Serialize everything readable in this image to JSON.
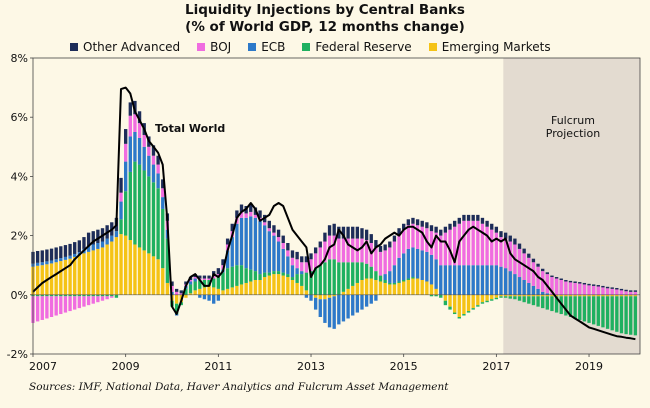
{
  "title_line1": "Liquidity Injections by Central Banks",
  "title_line2": "(% of World GDP, 12 months change)",
  "source": "Sources: IMF, National Data, Haver Analytics and Fulcrum Asset Management",
  "colors": {
    "background": "#fdf8e6",
    "projection_band": "#e3dbd0",
    "Other Advanced": "#1d2c58",
    "BOJ": "#f06ce0",
    "ECB": "#2d79c9",
    "Federal Reserve": "#1fb060",
    "Emerging Markets": "#f5c316",
    "total_line": "#000000"
  },
  "chart_data": {
    "type": "bar",
    "stacked": true,
    "title": "Liquidity Injections by Central Banks",
    "subtitle": "(% of World GDP, 12 months change)",
    "ylabel": "",
    "ylim": [
      -2,
      8
    ],
    "y_ticks": [
      "-2%",
      "0%",
      "2%",
      "4%",
      "6%",
      "8%"
    ],
    "x_ticks": [
      "2007",
      "2009",
      "2011",
      "2013",
      "2015",
      "2017",
      "2019"
    ],
    "xlim": [
      2007.0,
      2020.1
    ],
    "legend_position": "top",
    "grid": false,
    "projection": {
      "start": 2017.15,
      "end": 2020.1,
      "label_line1": "Fulcrum",
      "label_line2": "Projection"
    },
    "series_names": [
      "Other Advanced",
      "BOJ",
      "ECB",
      "Federal Reserve",
      "Emerging Markets"
    ],
    "line_label": "Total World",
    "x": [
      2007.0,
      2007.1,
      2007.2,
      2007.3,
      2007.4,
      2007.5,
      2007.6,
      2007.7,
      2007.8,
      2007.9,
      2008.0,
      2008.1,
      2008.2,
      2008.3,
      2008.4,
      2008.5,
      2008.6,
      2008.7,
      2008.8,
      2008.9,
      2009.0,
      2009.1,
      2009.2,
      2009.3,
      2009.4,
      2009.5,
      2009.6,
      2009.7,
      2009.8,
      2009.9,
      2010.0,
      2010.1,
      2010.2,
      2010.3,
      2010.4,
      2010.5,
      2010.6,
      2010.7,
      2010.8,
      2010.9,
      2011.0,
      2011.1,
      2011.2,
      2011.3,
      2011.4,
      2011.5,
      2011.6,
      2011.7,
      2011.8,
      2011.9,
      2012.0,
      2012.1,
      2012.2,
      2012.3,
      2012.4,
      2012.5,
      2012.6,
      2012.7,
      2012.8,
      2012.9,
      2013.0,
      2013.1,
      2013.2,
      2013.3,
      2013.4,
      2013.5,
      2013.6,
      2013.7,
      2013.8,
      2013.9,
      2014.0,
      2014.1,
      2014.2,
      2014.3,
      2014.4,
      2014.5,
      2014.6,
      2014.7,
      2014.8,
      2014.9,
      2015.0,
      2015.1,
      2015.2,
      2015.3,
      2015.4,
      2015.5,
      2015.6,
      2015.7,
      2015.8,
      2015.9,
      2016.0,
      2016.1,
      2016.2,
      2016.3,
      2016.4,
      2016.5,
      2016.6,
      2016.7,
      2016.8,
      2016.9,
      2017.0,
      2017.1,
      2017.2,
      2017.3,
      2017.4,
      2017.5,
      2017.6,
      2017.7,
      2017.8,
      2017.9,
      2018.0,
      2018.1,
      2018.2,
      2018.3,
      2018.4,
      2018.5,
      2018.6,
      2018.7,
      2018.8,
      2018.9,
      2019.0,
      2019.1,
      2019.2,
      2019.3,
      2019.4,
      2019.5,
      2019.6,
      2019.7,
      2019.8,
      2019.9,
      2020.0
    ],
    "series": [
      {
        "name": "Emerging Markets",
        "values": [
          0.95,
          0.98,
          1.0,
          1.03,
          1.06,
          1.1,
          1.14,
          1.18,
          1.22,
          1.28,
          1.34,
          1.4,
          1.45,
          1.5,
          1.55,
          1.6,
          1.7,
          1.8,
          1.95,
          2.05,
          2.0,
          1.85,
          1.7,
          1.6,
          1.5,
          1.4,
          1.3,
          1.2,
          0.9,
          0.4,
          -0.2,
          -0.3,
          -0.25,
          -0.1,
          0.05,
          0.15,
          0.2,
          0.25,
          0.3,
          0.25,
          0.2,
          0.15,
          0.2,
          0.25,
          0.3,
          0.35,
          0.4,
          0.45,
          0.5,
          0.5,
          0.6,
          0.65,
          0.7,
          0.7,
          0.65,
          0.6,
          0.5,
          0.4,
          0.3,
          0.15,
          0.0,
          -0.1,
          -0.15,
          -0.15,
          -0.1,
          -0.05,
          0.0,
          0.1,
          0.2,
          0.3,
          0.4,
          0.5,
          0.55,
          0.55,
          0.5,
          0.45,
          0.4,
          0.35,
          0.35,
          0.4,
          0.45,
          0.5,
          0.55,
          0.55,
          0.5,
          0.45,
          0.35,
          0.2,
          0.0,
          -0.2,
          -0.4,
          -0.6,
          -0.75,
          -0.65,
          -0.55,
          -0.45,
          -0.35,
          -0.25,
          -0.2,
          -0.15,
          -0.1,
          -0.05,
          -0.05,
          -0.05,
          -0.05,
          -0.05,
          -0.05,
          -0.05,
          -0.05,
          -0.05,
          -0.05,
          -0.05,
          -0.05,
          -0.05,
          -0.05,
          -0.05,
          -0.05,
          -0.05,
          -0.05,
          -0.05,
          -0.05,
          -0.05,
          -0.05,
          -0.05,
          -0.05,
          -0.05,
          -0.05,
          -0.05,
          -0.05,
          -0.05,
          -0.05
        ]
      },
      {
        "name": "Federal Reserve",
        "values": [
          -0.05,
          -0.05,
          -0.05,
          -0.05,
          -0.05,
          -0.05,
          -0.05,
          -0.05,
          -0.05,
          -0.05,
          -0.05,
          -0.05,
          -0.05,
          -0.05,
          -0.05,
          -0.05,
          -0.05,
          -0.05,
          -0.1,
          0.5,
          1.5,
          2.3,
          2.8,
          2.8,
          2.7,
          2.6,
          2.5,
          2.4,
          2.0,
          1.5,
          -0.2,
          -0.35,
          -0.1,
          0.2,
          0.3,
          0.3,
          0.3,
          0.25,
          0.2,
          0.3,
          0.4,
          0.6,
          0.7,
          0.7,
          0.7,
          0.65,
          0.5,
          0.4,
          0.3,
          0.2,
          0.15,
          0.1,
          0.1,
          0.1,
          0.1,
          0.1,
          0.1,
          0.3,
          0.4,
          0.6,
          0.8,
          0.9,
          1.0,
          1.1,
          1.2,
          1.2,
          1.1,
          1.0,
          0.9,
          0.8,
          0.7,
          0.6,
          0.5,
          0.4,
          0.3,
          0.2,
          0.1,
          0.05,
          0.05,
          0.05,
          0.05,
          0.05,
          0.05,
          0.0,
          0.0,
          0.0,
          -0.05,
          -0.05,
          -0.1,
          -0.15,
          -0.1,
          -0.05,
          -0.05,
          -0.05,
          -0.05,
          -0.05,
          -0.05,
          -0.05,
          -0.05,
          -0.05,
          -0.05,
          -0.05,
          -0.05,
          -0.08,
          -0.1,
          -0.15,
          -0.2,
          -0.25,
          -0.3,
          -0.35,
          -0.4,
          -0.45,
          -0.5,
          -0.55,
          -0.6,
          -0.65,
          -0.7,
          -0.75,
          -0.8,
          -0.85,
          -0.9,
          -0.95,
          -1.0,
          -1.05,
          -1.1,
          -1.15,
          -1.2,
          -1.25,
          -1.28,
          -1.3,
          -1.32
        ]
      },
      {
        "name": "ECB",
        "values": [
          0.1,
          0.1,
          0.1,
          0.1,
          0.1,
          0.1,
          0.1,
          0.1,
          0.1,
          0.1,
          0.1,
          0.15,
          0.2,
          0.2,
          0.2,
          0.2,
          0.2,
          0.2,
          0.2,
          0.6,
          1.0,
          1.2,
          1.0,
          0.9,
          0.8,
          0.7,
          0.6,
          0.5,
          0.4,
          0.3,
          0.1,
          -0.05,
          0.0,
          0.1,
          0.1,
          0.1,
          -0.1,
          -0.15,
          -0.2,
          -0.3,
          -0.2,
          0.1,
          0.6,
          1.0,
          1.4,
          1.6,
          1.7,
          1.8,
          1.8,
          1.8,
          1.6,
          1.4,
          1.2,
          1.0,
          0.8,
          0.6,
          0.4,
          0.2,
          0.1,
          -0.1,
          -0.2,
          -0.4,
          -0.6,
          -0.8,
          -1.0,
          -1.1,
          -1.0,
          -0.9,
          -0.8,
          -0.7,
          -0.6,
          -0.5,
          -0.4,
          -0.3,
          -0.2,
          0.0,
          0.2,
          0.4,
          0.6,
          0.8,
          0.9,
          1.0,
          1.0,
          1.0,
          1.0,
          1.0,
          1.0,
          1.0,
          1.0,
          1.0,
          1.0,
          1.0,
          1.0,
          1.0,
          1.0,
          1.0,
          1.0,
          1.0,
          1.0,
          1.0,
          1.0,
          0.95,
          0.9,
          0.8,
          0.7,
          0.6,
          0.5,
          0.4,
          0.3,
          0.2,
          0.1,
          0.05,
          0.0,
          0.0,
          0.0,
          0.0,
          0.0,
          0.0,
          0.0,
          0.0,
          0.0,
          0.0,
          0.0,
          0.0,
          0.0,
          0.0,
          0.0,
          0.0,
          0.0,
          0.0,
          0.0
        ]
      },
      {
        "name": "BOJ",
        "values": [
          -0.9,
          -0.85,
          -0.8,
          -0.75,
          -0.7,
          -0.65,
          -0.6,
          -0.55,
          -0.5,
          -0.45,
          -0.4,
          -0.35,
          -0.3,
          -0.25,
          -0.2,
          -0.15,
          -0.1,
          -0.05,
          0.0,
          0.3,
          0.6,
          0.7,
          0.6,
          0.5,
          0.4,
          0.3,
          0.3,
          0.3,
          0.3,
          0.3,
          0.2,
          0.1,
          0.05,
          0.05,
          0.05,
          0.05,
          0.05,
          0.05,
          0.05,
          0.1,
          0.1,
          0.15,
          0.2,
          0.2,
          0.2,
          0.2,
          0.15,
          0.15,
          0.1,
          0.1,
          0.1,
          0.1,
          0.1,
          0.15,
          0.2,
          0.2,
          0.25,
          0.3,
          0.3,
          0.35,
          0.4,
          0.5,
          0.6,
          0.7,
          0.8,
          0.8,
          0.8,
          0.8,
          0.8,
          0.8,
          0.8,
          0.8,
          0.8,
          0.8,
          0.8,
          0.8,
          0.8,
          0.8,
          0.8,
          0.8,
          0.8,
          0.8,
          0.8,
          0.8,
          0.8,
          0.8,
          0.8,
          0.9,
          1.0,
          1.1,
          1.2,
          1.3,
          1.4,
          1.5,
          1.5,
          1.5,
          1.5,
          1.4,
          1.3,
          1.2,
          1.1,
          1.0,
          1.0,
          1.0,
          1.0,
          0.95,
          0.9,
          0.85,
          0.8,
          0.75,
          0.7,
          0.65,
          0.6,
          0.55,
          0.5,
          0.45,
          0.42,
          0.4,
          0.38,
          0.35,
          0.32,
          0.3,
          0.28,
          0.25,
          0.22,
          0.2,
          0.18,
          0.15,
          0.12,
          0.1,
          0.1
        ]
      },
      {
        "name": "Other Advanced",
        "values": [
          0.4,
          0.4,
          0.4,
          0.4,
          0.4,
          0.4,
          0.4,
          0.4,
          0.4,
          0.4,
          0.4,
          0.4,
          0.45,
          0.45,
          0.45,
          0.45,
          0.45,
          0.45,
          0.45,
          0.5,
          0.5,
          0.45,
          0.45,
          0.4,
          0.4,
          0.35,
          0.35,
          0.3,
          0.3,
          0.25,
          0.15,
          0.1,
          0.1,
          0.1,
          0.1,
          0.1,
          0.1,
          0.1,
          0.1,
          0.15,
          0.2,
          0.2,
          0.2,
          0.25,
          0.25,
          0.25,
          0.25,
          0.25,
          0.25,
          0.25,
          0.25,
          0.25,
          0.25,
          0.25,
          0.25,
          0.25,
          0.25,
          0.25,
          0.2,
          0.2,
          0.2,
          0.2,
          0.2,
          0.3,
          0.35,
          0.4,
          0.4,
          0.4,
          0.4,
          0.4,
          0.4,
          0.35,
          0.35,
          0.3,
          0.25,
          0.2,
          0.2,
          0.2,
          0.2,
          0.2,
          0.2,
          0.2,
          0.2,
          0.2,
          0.2,
          0.2,
          0.2,
          0.2,
          0.2,
          0.2,
          0.2,
          0.2,
          0.2,
          0.2,
          0.2,
          0.2,
          0.2,
          0.2,
          0.2,
          0.2,
          0.2,
          0.2,
          0.2,
          0.2,
          0.2,
          0.18,
          0.16,
          0.14,
          0.12,
          0.1,
          0.08,
          0.06,
          0.05,
          0.05,
          0.05,
          0.05,
          0.05,
          0.05,
          0.05,
          0.05,
          0.05,
          0.05,
          0.05,
          0.05,
          0.05,
          0.05,
          0.05,
          0.05,
          0.05,
          0.05,
          0.05
        ]
      }
    ],
    "total_world": [
      0.1,
      0.25,
      0.4,
      0.5,
      0.6,
      0.7,
      0.8,
      0.9,
      1.0,
      1.2,
      1.35,
      1.5,
      1.65,
      1.8,
      1.9,
      2.0,
      2.1,
      2.2,
      2.35,
      6.95,
      7.0,
      6.8,
      6.2,
      5.9,
      5.6,
      5.2,
      5.0,
      4.8,
      4.4,
      2.5,
      -0.4,
      -0.65,
      -0.2,
      0.3,
      0.6,
      0.7,
      0.5,
      0.3,
      0.3,
      0.7,
      0.6,
      0.8,
      1.5,
      2.0,
      2.6,
      2.8,
      2.9,
      3.1,
      2.9,
      2.5,
      2.6,
      2.7,
      3.0,
      3.1,
      3.0,
      2.6,
      2.2,
      2.0,
      1.8,
      1.6,
      0.6,
      0.9,
      1.0,
      1.2,
      1.6,
      1.7,
      2.2,
      2.0,
      1.7,
      1.6,
      1.5,
      1.6,
      1.8,
      1.4,
      1.6,
      1.7,
      1.9,
      2.0,
      2.1,
      2.0,
      2.2,
      2.3,
      2.3,
      2.2,
      2.1,
      1.8,
      1.6,
      2.0,
      1.8,
      1.8,
      1.5,
      1.1,
      1.8,
      2.0,
      2.2,
      2.3,
      2.2,
      2.1,
      2.0,
      1.8,
      1.9,
      1.8,
      1.9,
      1.4,
      1.2,
      1.1,
      1.0,
      0.9,
      0.8,
      0.6,
      0.5,
      0.3,
      0.1,
      -0.1,
      -0.3,
      -0.5,
      -0.7,
      -0.8,
      -0.9,
      -1.0,
      -1.1,
      -1.15,
      -1.2,
      -1.25,
      -1.3,
      -1.35,
      -1.4,
      -1.42,
      -1.45,
      -1.47,
      -1.5
    ]
  }
}
